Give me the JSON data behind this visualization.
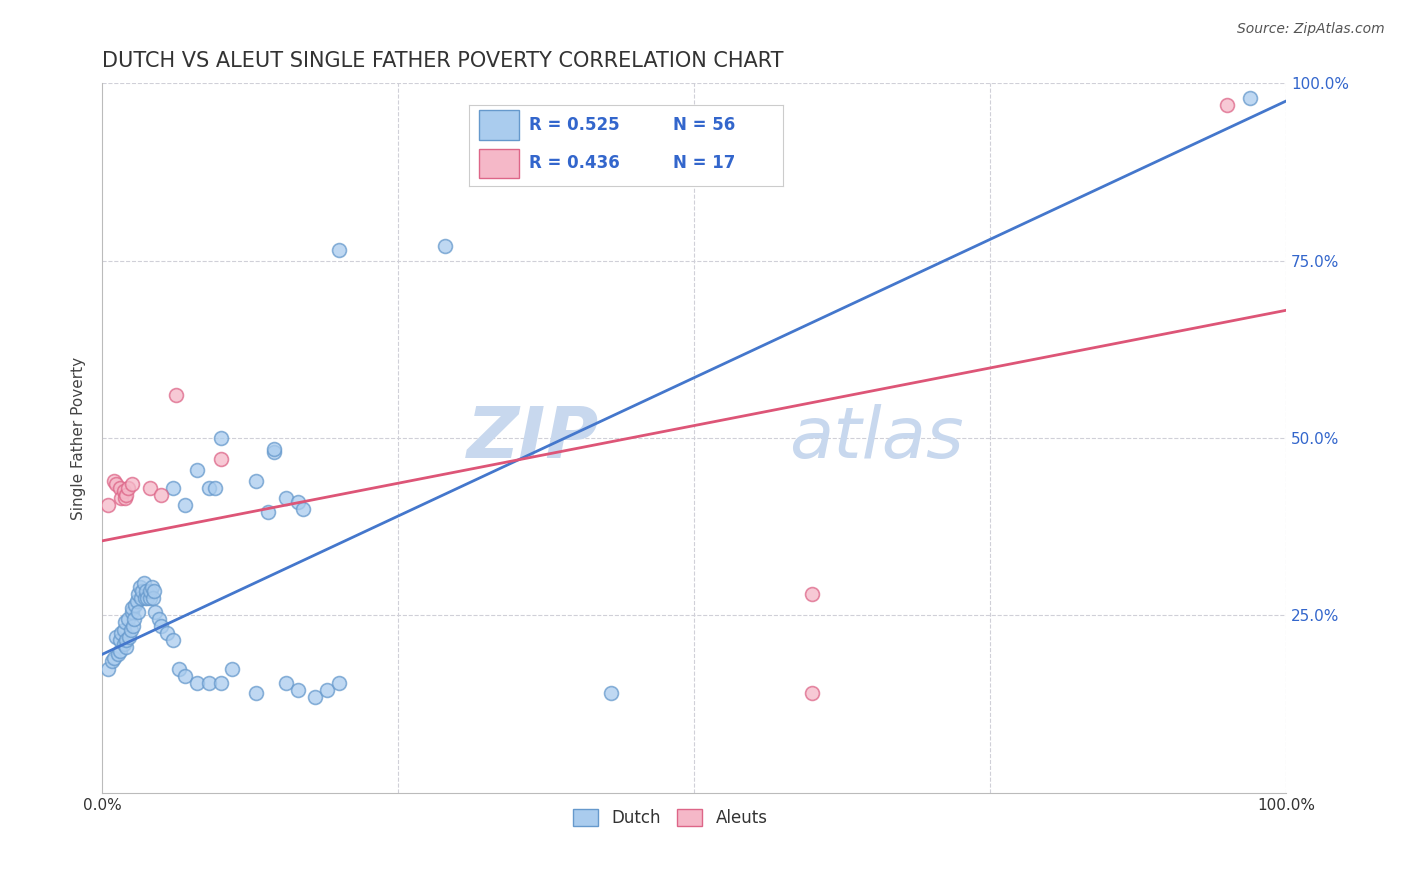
{
  "title": "DUTCH VS ALEUT SINGLE FATHER POVERTY CORRELATION CHART",
  "source": "Source: ZipAtlas.com",
  "ylabel": "Single Father Poverty",
  "xlim": [
    0.0,
    1.0
  ],
  "ylim": [
    0.0,
    1.0
  ],
  "xtick_labels": [
    "0.0%",
    "",
    "",
    "",
    "100.0%"
  ],
  "xtick_positions": [
    0.0,
    0.25,
    0.5,
    0.75,
    1.0
  ],
  "ytick_labels_right": [
    "25.0%",
    "50.0%",
    "75.0%",
    "100.0%"
  ],
  "ytick_positions": [
    0.25,
    0.5,
    0.75,
    1.0
  ],
  "grid_color": "#d0d0d8",
  "background_color": "#ffffff",
  "title_color": "#333333",
  "title_fontsize": 15,
  "watermark_text_1": "ZIP",
  "watermark_text_2": "atlas",
  "watermark_color": "#c8d8ee",
  "legend_R1": "R = 0.525",
  "legend_N1": "N = 56",
  "legend_R2": "R = 0.436",
  "legend_N2": "N = 17",
  "dutch_color": "#aaccee",
  "aleut_color": "#f5b8c8",
  "dutch_edge_color": "#6699cc",
  "aleut_edge_color": "#dd6688",
  "dutch_line_color": "#4477cc",
  "aleut_line_color": "#dd5577",
  "right_tick_color": "#3366cc",
  "dutch_scatter": [
    [
      0.005,
      0.175
    ],
    [
      0.008,
      0.185
    ],
    [
      0.01,
      0.19
    ],
    [
      0.012,
      0.22
    ],
    [
      0.013,
      0.195
    ],
    [
      0.015,
      0.2
    ],
    [
      0.015,
      0.215
    ],
    [
      0.016,
      0.225
    ],
    [
      0.018,
      0.21
    ],
    [
      0.018,
      0.23
    ],
    [
      0.019,
      0.24
    ],
    [
      0.02,
      0.205
    ],
    [
      0.02,
      0.215
    ],
    [
      0.022,
      0.245
    ],
    [
      0.023,
      0.22
    ],
    [
      0.024,
      0.23
    ],
    [
      0.025,
      0.255
    ],
    [
      0.025,
      0.26
    ],
    [
      0.026,
      0.235
    ],
    [
      0.027,
      0.245
    ],
    [
      0.028,
      0.265
    ],
    [
      0.029,
      0.27
    ],
    [
      0.03,
      0.255
    ],
    [
      0.03,
      0.28
    ],
    [
      0.032,
      0.29
    ],
    [
      0.033,
      0.275
    ],
    [
      0.034,
      0.285
    ],
    [
      0.035,
      0.295
    ],
    [
      0.036,
      0.275
    ],
    [
      0.037,
      0.285
    ],
    [
      0.038,
      0.275
    ],
    [
      0.04,
      0.275
    ],
    [
      0.04,
      0.285
    ],
    [
      0.042,
      0.29
    ],
    [
      0.043,
      0.275
    ],
    [
      0.044,
      0.285
    ],
    [
      0.045,
      0.255
    ],
    [
      0.048,
      0.245
    ],
    [
      0.05,
      0.235
    ],
    [
      0.055,
      0.225
    ],
    [
      0.06,
      0.215
    ],
    [
      0.065,
      0.175
    ],
    [
      0.07,
      0.165
    ],
    [
      0.08,
      0.155
    ],
    [
      0.09,
      0.155
    ],
    [
      0.1,
      0.155
    ],
    [
      0.11,
      0.175
    ],
    [
      0.13,
      0.14
    ],
    [
      0.155,
      0.155
    ],
    [
      0.165,
      0.145
    ],
    [
      0.18,
      0.135
    ],
    [
      0.19,
      0.145
    ],
    [
      0.2,
      0.155
    ],
    [
      0.43,
      0.14
    ],
    [
      0.97,
      0.98
    ],
    [
      0.1,
      0.5
    ]
  ],
  "dutch_scatter_extra": [
    [
      0.14,
      0.395
    ],
    [
      0.155,
      0.415
    ],
    [
      0.165,
      0.41
    ],
    [
      0.17,
      0.4
    ],
    [
      0.08,
      0.455
    ],
    [
      0.145,
      0.48
    ],
    [
      0.145,
      0.485
    ],
    [
      0.06,
      0.43
    ],
    [
      0.09,
      0.43
    ],
    [
      0.095,
      0.43
    ],
    [
      0.07,
      0.405
    ],
    [
      0.13,
      0.44
    ],
    [
      0.2,
      0.765
    ],
    [
      0.29,
      0.77
    ]
  ],
  "aleut_scatter": [
    [
      0.005,
      0.405
    ],
    [
      0.01,
      0.44
    ],
    [
      0.012,
      0.435
    ],
    [
      0.015,
      0.43
    ],
    [
      0.016,
      0.415
    ],
    [
      0.018,
      0.425
    ],
    [
      0.019,
      0.415
    ],
    [
      0.02,
      0.42
    ],
    [
      0.022,
      0.43
    ],
    [
      0.025,
      0.435
    ],
    [
      0.04,
      0.43
    ],
    [
      0.062,
      0.56
    ],
    [
      0.6,
      0.28
    ],
    [
      0.05,
      0.42
    ],
    [
      0.1,
      0.47
    ],
    [
      0.95,
      0.97
    ],
    [
      0.6,
      0.14
    ]
  ],
  "dutch_trendline": [
    [
      0.0,
      0.195
    ],
    [
      1.0,
      0.975
    ]
  ],
  "aleut_trendline": [
    [
      0.0,
      0.355
    ],
    [
      1.0,
      0.68
    ]
  ]
}
